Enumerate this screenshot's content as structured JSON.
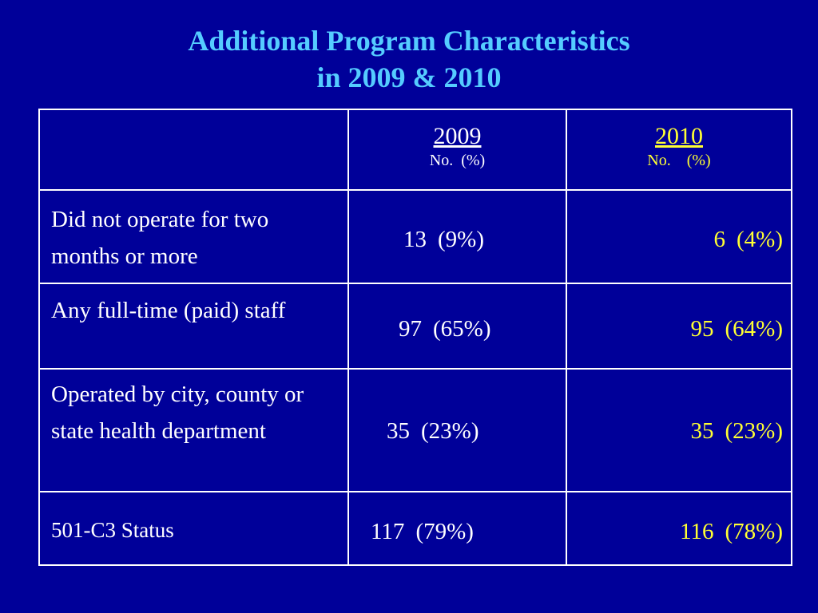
{
  "title": {
    "line1": "Additional Program Characteristics",
    "line2": "in 2009 & 2010"
  },
  "colors": {
    "background": "#000099",
    "title": "#55ccff",
    "text_2009": "#ffffff",
    "text_2010": "#ffff33",
    "grid": "#ffffff"
  },
  "table": {
    "headers": [
      {
        "year": "2009",
        "sub": "No.  (%)"
      },
      {
        "year": "2010",
        "sub": "No.    (%)"
      }
    ],
    "rows": [
      {
        "label": "Did not operate for two months or more",
        "v2009": {
          "no": "13",
          "pct": "(9%)"
        },
        "v2010": {
          "no": "6",
          "pct": "(4%)"
        }
      },
      {
        "label": "Any full-time (paid) staff",
        "v2009": {
          "no": "97",
          "pct": "(65%)"
        },
        "v2010": {
          "no": "95",
          "pct": "(64%)"
        }
      },
      {
        "label": "Operated by city, county or state health department",
        "v2009": {
          "no": "35",
          "pct": "(23%)"
        },
        "v2010": {
          "no": "35",
          "pct": "(23%)"
        }
      },
      {
        "label": "501-C3 Status",
        "v2009": {
          "no": "117",
          "pct": "(79%)"
        },
        "v2010": {
          "no": "116",
          "pct": "(78%)"
        }
      }
    ]
  }
}
